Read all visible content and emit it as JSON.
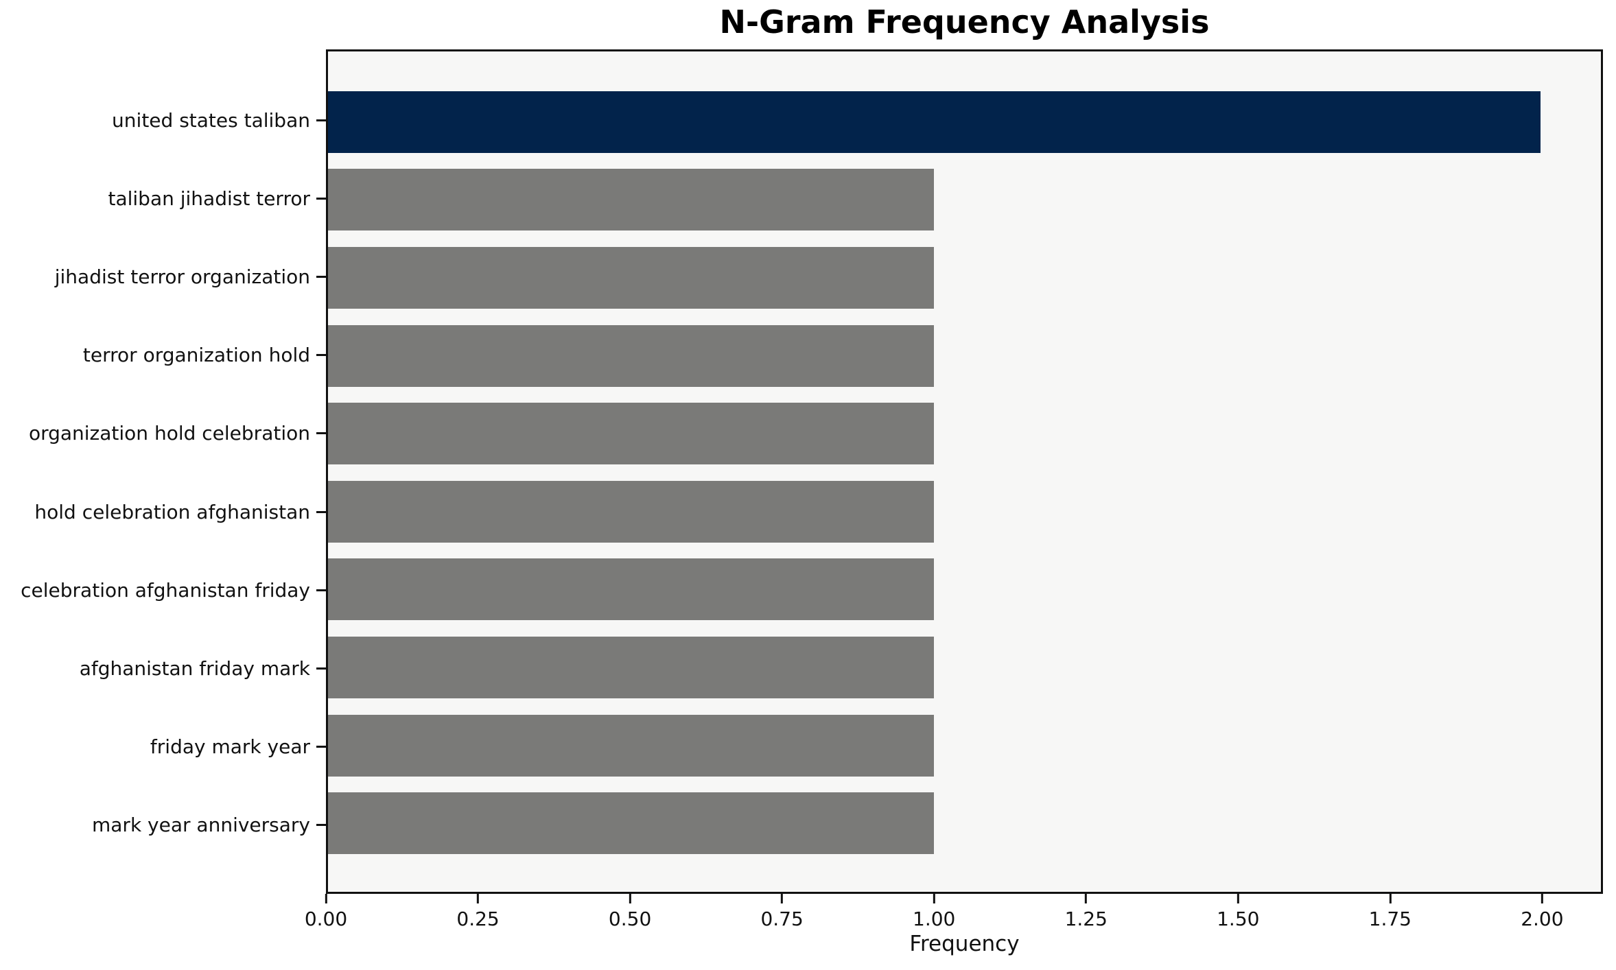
{
  "chart_data": {
    "type": "bar",
    "orientation": "horizontal",
    "title": "N-Gram Frequency Analysis",
    "xlabel": "Frequency",
    "ylabel": "",
    "categories": [
      "united states taliban",
      "taliban jihadist terror",
      "jihadist terror organization",
      "terror organization hold",
      "organization hold celebration",
      "hold celebration afghanistan",
      "celebration afghanistan friday",
      "afghanistan friday mark",
      "friday mark year",
      "mark year anniversary"
    ],
    "values": [
      2,
      1,
      1,
      1,
      1,
      1,
      1,
      1,
      1,
      1
    ],
    "bar_colors": [
      "#02234b",
      "#7a7a78",
      "#7a7a78",
      "#7a7a78",
      "#7a7a78",
      "#7a7a78",
      "#7a7a78",
      "#7a7a78",
      "#7a7a78",
      "#7a7a78"
    ],
    "xlim": [
      0,
      2.1
    ],
    "xticks": [
      {
        "value": 0.0,
        "label": "0.00"
      },
      {
        "value": 0.25,
        "label": "0.25"
      },
      {
        "value": 0.5,
        "label": "0.50"
      },
      {
        "value": 0.75,
        "label": "0.75"
      },
      {
        "value": 1.0,
        "label": "1.00"
      },
      {
        "value": 1.25,
        "label": "1.25"
      },
      {
        "value": 1.5,
        "label": "1.50"
      },
      {
        "value": 1.75,
        "label": "1.75"
      },
      {
        "value": 2.0,
        "label": "2.00"
      }
    ],
    "grid": false,
    "legend": "none",
    "colors": {
      "highlight_bar": "#02234b",
      "default_bar": "#7a7a78",
      "plot_background": "#f7f7f6",
      "figure_background": "#ffffff",
      "spine": "#111111",
      "text": "#000000"
    }
  }
}
